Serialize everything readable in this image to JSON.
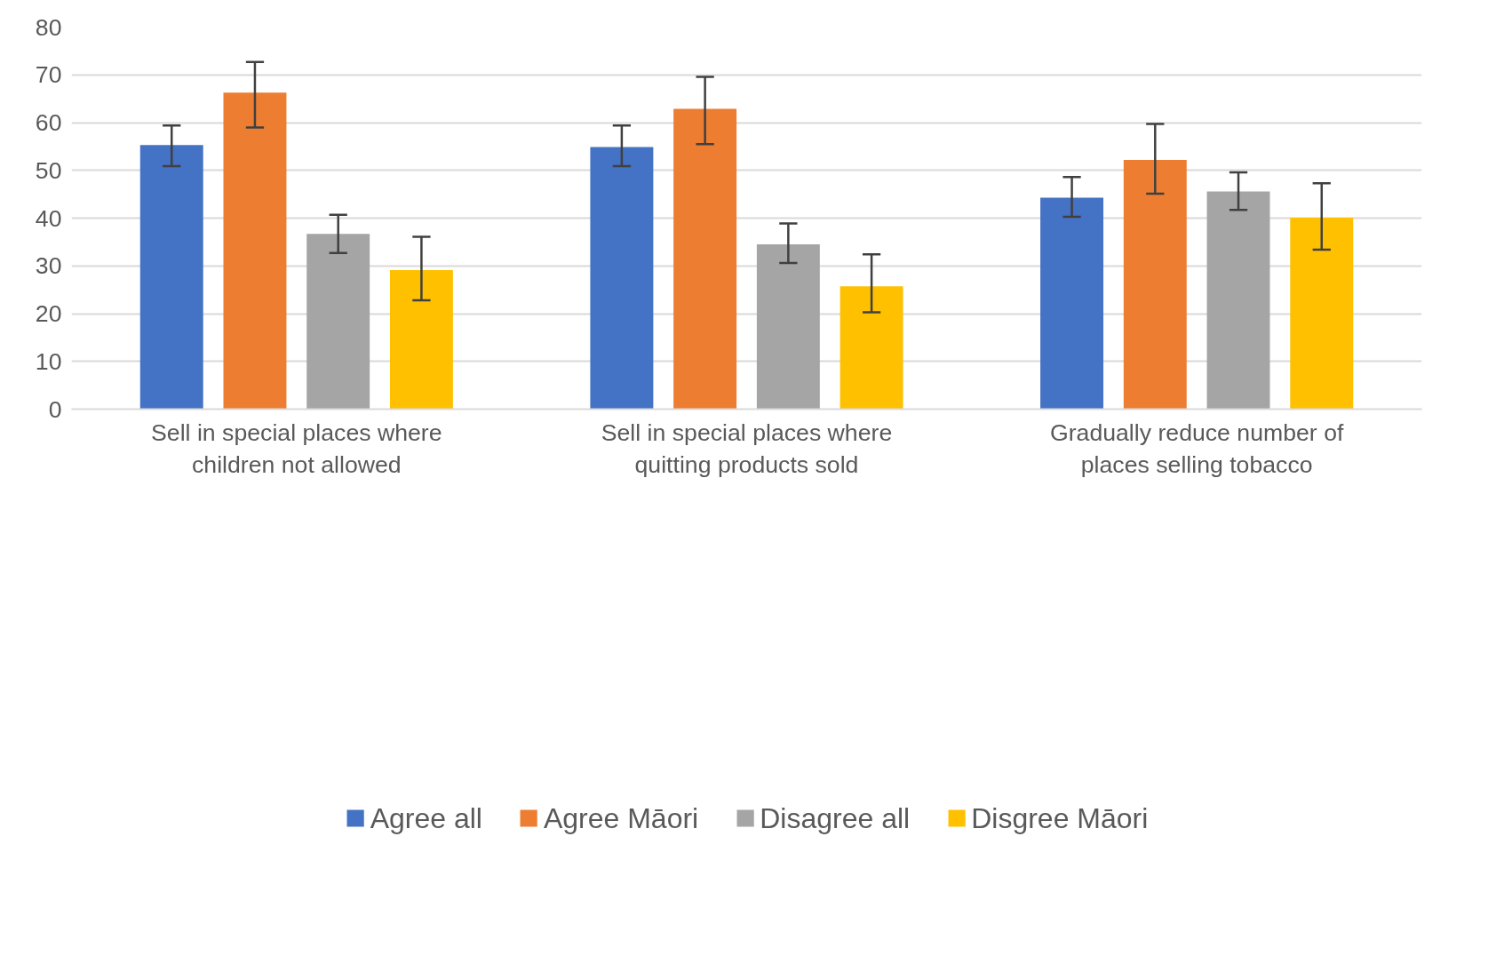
{
  "chart_data": {
    "type": "bar",
    "categories": [
      "Sell in special places where children not allowed",
      "Sell in special places where quitting products sold",
      "Gradually reduce number of places selling tobacco"
    ],
    "series": [
      {
        "name": "Agree all",
        "color": "#4472c4",
        "values": [
          55.3,
          54.9,
          44.3
        ],
        "errors": [
          [
            50.9,
            59.4
          ],
          [
            50.9,
            59.4
          ],
          [
            40.3,
            48.6
          ]
        ]
      },
      {
        "name": "Agree Māori",
        "color": "#ed7d31",
        "values": [
          66.3,
          62.9,
          52.2
        ],
        "errors": [
          [
            59.0,
            72.7
          ],
          [
            55.5,
            69.6
          ],
          [
            45.1,
            59.7
          ]
        ]
      },
      {
        "name": "Disagree all",
        "color": "#a5a5a5",
        "values": [
          36.7,
          34.5,
          45.6
        ],
        "errors": [
          [
            32.7,
            40.7
          ],
          [
            30.6,
            38.9
          ],
          [
            41.7,
            49.6
          ]
        ]
      },
      {
        "name": "Disgree Māori",
        "color": "#ffc000",
        "values": [
          29.1,
          25.7,
          40.1
        ],
        "errors": [
          [
            22.8,
            36.1
          ],
          [
            20.3,
            32.4
          ],
          [
            33.4,
            47.3
          ]
        ]
      }
    ],
    "ylim": [
      0,
      80
    ],
    "yticks": [
      0,
      10,
      20,
      30,
      40,
      50,
      60,
      70,
      80
    ],
    "grid": "y",
    "legend": "bottom"
  }
}
